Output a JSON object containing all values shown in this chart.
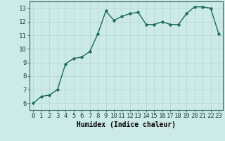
{
  "x": [
    0,
    1,
    2,
    3,
    4,
    5,
    6,
    7,
    8,
    9,
    10,
    11,
    12,
    13,
    14,
    15,
    16,
    17,
    18,
    19,
    20,
    21,
    22,
    23
  ],
  "y": [
    6.0,
    6.5,
    6.6,
    7.0,
    8.9,
    9.3,
    9.4,
    9.8,
    11.1,
    12.8,
    12.1,
    12.4,
    12.6,
    12.7,
    11.8,
    11.8,
    12.0,
    11.8,
    11.8,
    12.6,
    13.1,
    13.1,
    13.0,
    11.1
  ],
  "line_color": "#1a6b5a",
  "marker_color": "#1a6b5a",
  "bg_color": "#cceae8",
  "grid_color": "#b8d8d5",
  "xlabel": "Humidex (Indice chaleur)",
  "xlim": [
    -0.5,
    23.5
  ],
  "ylim": [
    5.5,
    13.5
  ],
  "xticks": [
    0,
    1,
    2,
    3,
    4,
    5,
    6,
    7,
    8,
    9,
    10,
    11,
    12,
    13,
    14,
    15,
    16,
    17,
    18,
    19,
    20,
    21,
    22,
    23
  ],
  "yticks": [
    6,
    7,
    8,
    9,
    10,
    11,
    12,
    13
  ],
  "xlabel_fontsize": 7,
  "tick_fontsize": 6.5,
  "line_width": 1.0,
  "marker_size": 2.5
}
